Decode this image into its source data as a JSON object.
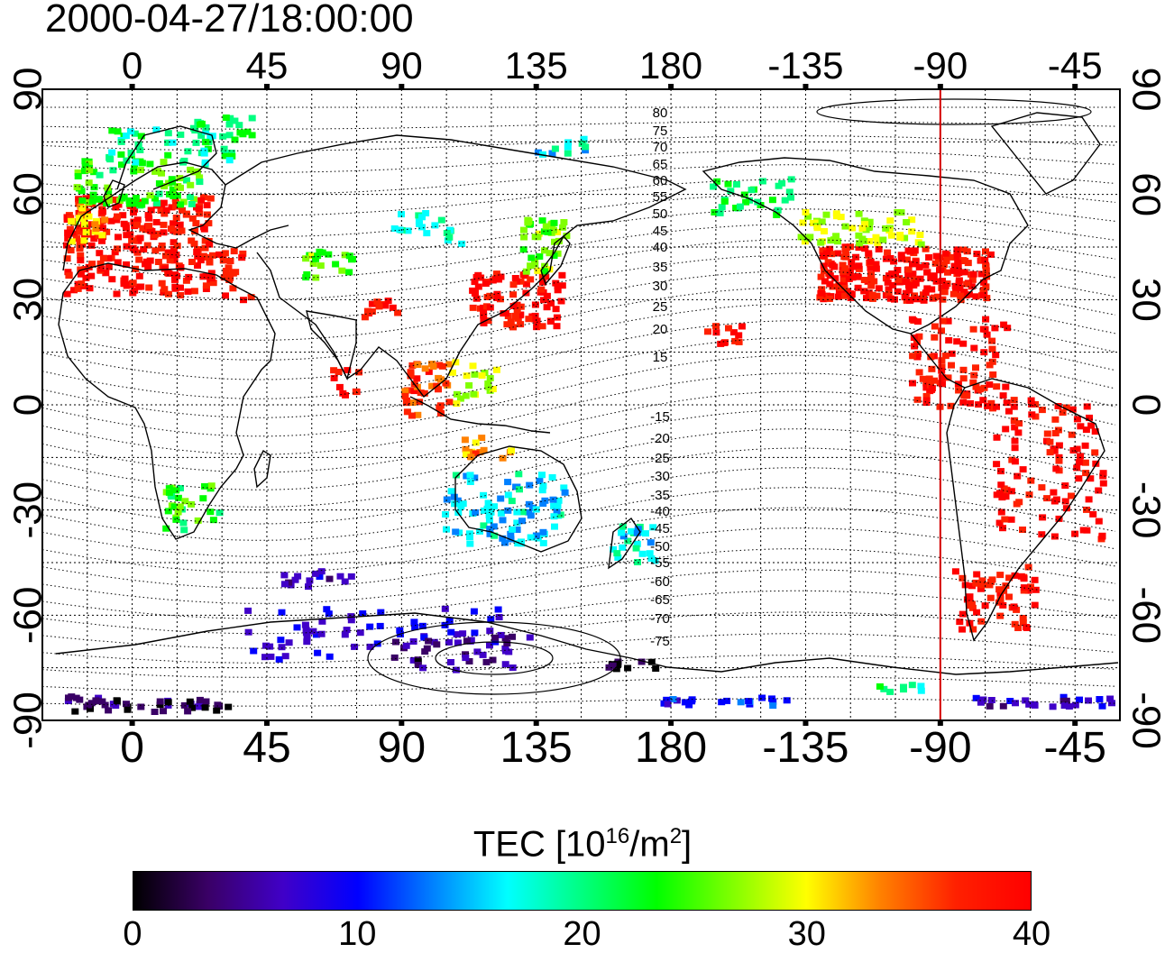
{
  "timestamp": "2000-04-27/18:00:00",
  "map": {
    "top_axis_labels": [
      "0",
      "45",
      "90",
      "135",
      "180",
      "-135",
      "-90",
      "-45"
    ],
    "bottom_axis_labels": [
      "0",
      "45",
      "90",
      "135",
      "180",
      "-135",
      "-90",
      "-45"
    ],
    "left_axis_labels": [
      "90",
      "60",
      "30",
      "0",
      "-30",
      "-60",
      "-90"
    ],
    "right_axis_labels": [
      "90",
      "60",
      "30",
      "0",
      "-30",
      "-60",
      "-90"
    ],
    "magnetic_latitude_labels": [
      "80",
      "75",
      "70",
      "65",
      "60",
      "55",
      "50",
      "45",
      "40",
      "35",
      "30",
      "25",
      "20",
      "15",
      "-15",
      "-20",
      "-25",
      "-30",
      "-35",
      "-40",
      "-45",
      "-50",
      "-55",
      "-60",
      "-65",
      "-70",
      "-75"
    ],
    "noon_meridian_longitude": -90,
    "noon_meridian_color": "#d40000"
  },
  "colorbar": {
    "title": "TEC  [10",
    "title_sup": "16",
    "title_unit": "/m",
    "title_sup2": "2",
    "title_close": "]",
    "ticks": [
      "0",
      "10",
      "20",
      "30",
      "40"
    ],
    "min": 0,
    "max": 40,
    "palette": [
      "#000000",
      "#3a0066",
      "#4000c8",
      "#0000ff",
      "#0080ff",
      "#00ffff",
      "#00ff80",
      "#00ff00",
      "#80ff00",
      "#ffff00",
      "#ff8000",
      "#ff2000",
      "#ff0000"
    ]
  }
}
